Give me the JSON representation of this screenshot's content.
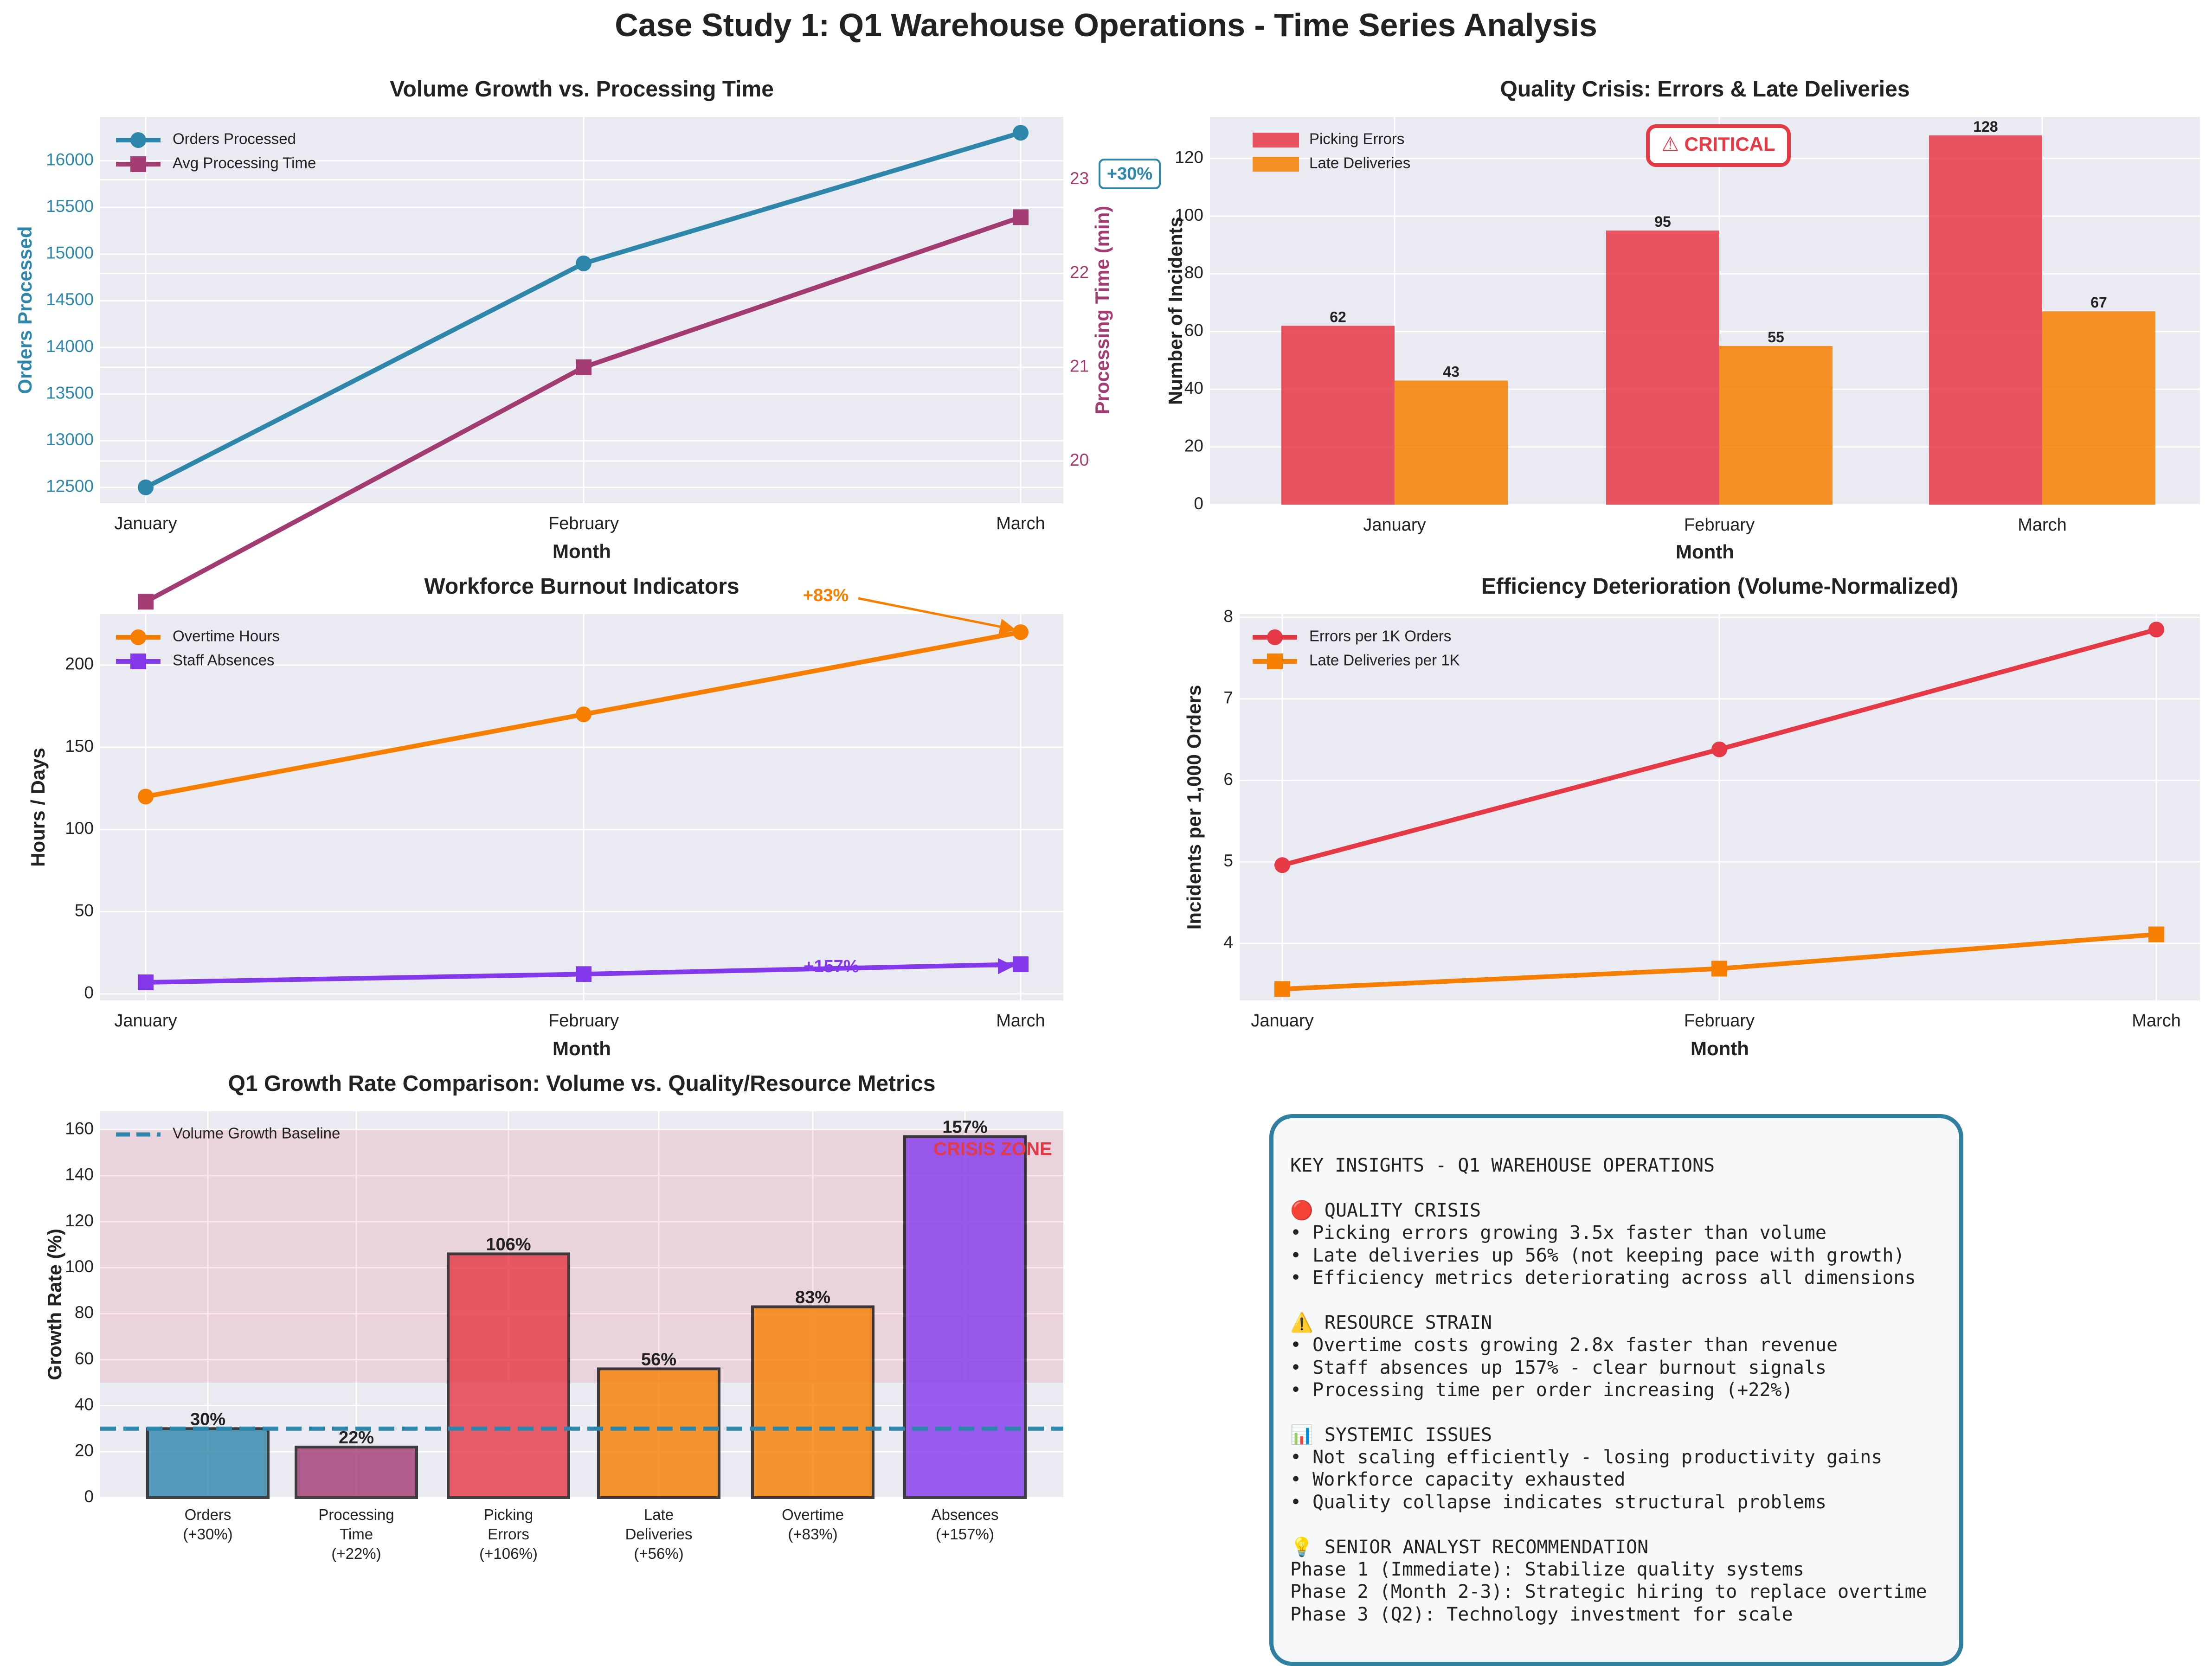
{
  "title": "Case Study 1: Q1 Warehouse Operations - Time Series Analysis",
  "colors": {
    "orders": "#2e86ab",
    "processing": "#a23b72",
    "errors": "#e63946",
    "late": "#f77f00",
    "overtime": "#f77f00",
    "absences": "#8338ec",
    "panel_bg": "#eaeaf2",
    "crisis_zone": "#e63946",
    "insights_border": "#2e7fa0"
  },
  "chart_data": [
    {
      "type": "line",
      "title": "Volume Growth vs. Processing Time",
      "xlabel": "Month",
      "ylabel": "Orders Processed",
      "y2label": "Processing Time (min)",
      "categories": [
        "January",
        "February",
        "March"
      ],
      "series": [
        {
          "name": "Orders Processed",
          "axis": "left",
          "marker": "circle",
          "values": [
            12500,
            14900,
            16300
          ]
        },
        {
          "name": "Avg Processing Time",
          "axis": "right",
          "marker": "square",
          "values": [
            18.5,
            21.0,
            22.6
          ]
        }
      ],
      "ylim": [
        12330,
        16470
      ],
      "yticks": [
        12500,
        13000,
        13500,
        14000,
        14500,
        15000,
        15500,
        16000
      ],
      "y2lim": [
        19.55,
        23.67
      ],
      "y2ticks": [
        20,
        21,
        22,
        23
      ],
      "annotation": "+30%",
      "legend": "top-left",
      "grid": true
    },
    {
      "type": "bar",
      "title": "Quality Crisis: Errors & Late Deliveries",
      "xlabel": "Month",
      "ylabel": "Number of Incidents",
      "categories": [
        "January",
        "February",
        "March"
      ],
      "series": [
        {
          "name": "Picking Errors",
          "values": [
            62,
            95,
            128
          ]
        },
        {
          "name": "Late Deliveries",
          "values": [
            43,
            55,
            67
          ]
        }
      ],
      "ylim": [
        0,
        134.4
      ],
      "yticks": [
        0,
        20,
        40,
        60,
        80,
        100,
        120
      ],
      "annotation": "⚠ CRITICAL",
      "legend": "top-left",
      "grid": true
    },
    {
      "type": "line",
      "title": "Workforce Burnout Indicators",
      "xlabel": "Month",
      "ylabel": "Hours / Days",
      "categories": [
        "January",
        "February",
        "March"
      ],
      "series": [
        {
          "name": "Overtime Hours",
          "marker": "circle",
          "values": [
            120,
            170,
            220
          ]
        },
        {
          "name": "Staff Absences",
          "marker": "square",
          "values": [
            7,
            12,
            18
          ]
        }
      ],
      "ylim": [
        -4,
        231
      ],
      "yticks": [
        0,
        50,
        100,
        150,
        200
      ],
      "annotations": [
        "+83%",
        "+157%"
      ],
      "legend": "top-left",
      "grid": true
    },
    {
      "type": "line",
      "title": "Efficiency Deterioration (Volume-Normalized)",
      "xlabel": "Month",
      "ylabel": "Incidents per 1,000 Orders",
      "categories": [
        "January",
        "February",
        "March"
      ],
      "series": [
        {
          "name": "Errors per 1K Orders",
          "marker": "circle",
          "values": [
            4.96,
            6.38,
            7.85
          ]
        },
        {
          "name": "Late Deliveries per 1K",
          "marker": "square",
          "values": [
            3.44,
            3.69,
            4.11
          ]
        }
      ],
      "ylim": [
        3.3,
        8.04
      ],
      "yticks": [
        4,
        5,
        6,
        7,
        8
      ],
      "legend": "top-left",
      "grid": true
    },
    {
      "type": "bar",
      "title": "Q1 Growth Rate Comparison: Volume vs. Quality/Resource Metrics",
      "ylabel": "Growth Rate (%)",
      "categories": [
        [
          "Orders",
          "(+30%)"
        ],
        [
          "Processing",
          "Time",
          "(+22%)"
        ],
        [
          "Picking",
          "Errors",
          "(+106%)"
        ],
        [
          "Late",
          "Deliveries",
          "(+56%)"
        ],
        [
          "Overtime",
          "(+83%)"
        ],
        [
          "Absences",
          "(+157%)"
        ]
      ],
      "values": [
        30,
        22,
        106,
        56,
        83,
        157
      ],
      "value_labels": [
        "30%",
        "22%",
        "106%",
        "56%",
        "83%",
        "157%"
      ],
      "bar_colors": [
        "#2e86ab",
        "#a23b72",
        "#e63946",
        "#f77f00",
        "#f77f00",
        "#8338ec"
      ],
      "baseline": {
        "name": "Volume Growth Baseline",
        "value": 30
      },
      "crisis_zone": {
        "label": "CRISIS ZONE",
        "from": 50,
        "to": 160
      },
      "ylim": [
        0,
        168
      ],
      "yticks": [
        0,
        20,
        40,
        60,
        80,
        100,
        120,
        140,
        160
      ],
      "legend": "top-left",
      "grid": true
    }
  ],
  "insights": [
    "KEY INSIGHTS - Q1 WAREHOUSE OPERATIONS",
    "",
    "🔴 QUALITY CRISIS",
    "• Picking errors growing 3.5x faster than volume",
    "• Late deliveries up 56% (not keeping pace with growth)",
    "• Efficiency metrics deteriorating across all dimensions",
    "",
    "⚠️ RESOURCE STRAIN",
    "• Overtime costs growing 2.8x faster than revenue",
    "• Staff absences up 157% - clear burnout signals",
    "• Processing time per order increasing (+22%)",
    "",
    "📊 SYSTEMIC ISSUES",
    "• Not scaling efficiently - losing productivity gains",
    "• Workforce capacity exhausted",
    "• Quality collapse indicates structural problems",
    "",
    "💡 SENIOR ANALYST RECOMMENDATION",
    "Phase 1 (Immediate): Stabilize quality systems",
    "Phase 2 (Month 2-3): Strategic hiring to replace overtime",
    "Phase 3 (Q2): Technology investment for scale"
  ]
}
